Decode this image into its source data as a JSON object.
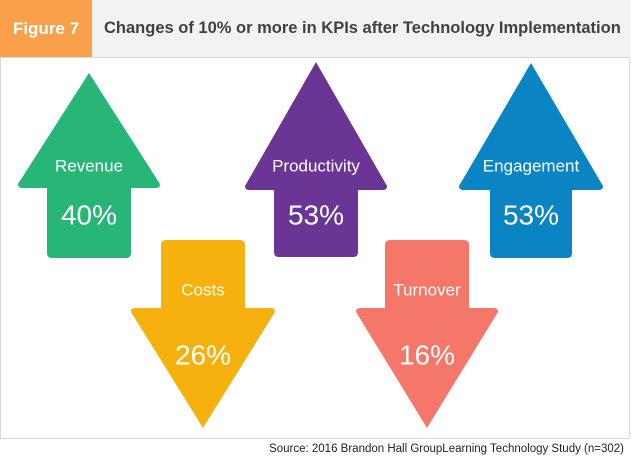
{
  "header": {
    "figure_label": "Figure 7",
    "title": "Changes of 10% or more in KPIs after Technology Implementation"
  },
  "source": "Source: 2016 Brandon Hall GroupLearning Technology Study (n=302)",
  "colors": {
    "figure_tag": "#f9a04a",
    "text_on_arrow": "#ffffff"
  },
  "chart_data": {
    "type": "bar",
    "title": "Changes of 10% or more in KPIs after Technology Implementation",
    "unit": "%",
    "categories": [
      "Revenue",
      "Productivity",
      "Engagement",
      "Costs",
      "Turnover"
    ],
    "values": [
      40,
      53,
      53,
      26,
      16
    ],
    "directions": [
      "up",
      "up",
      "up",
      "down",
      "down"
    ],
    "value_labels": [
      "40%",
      "53%",
      "53%",
      "26%",
      "16%"
    ],
    "colors": [
      "#27b677",
      "#6a3594",
      "#0b84c4",
      "#f6b10e",
      "#f4776a"
    ]
  }
}
